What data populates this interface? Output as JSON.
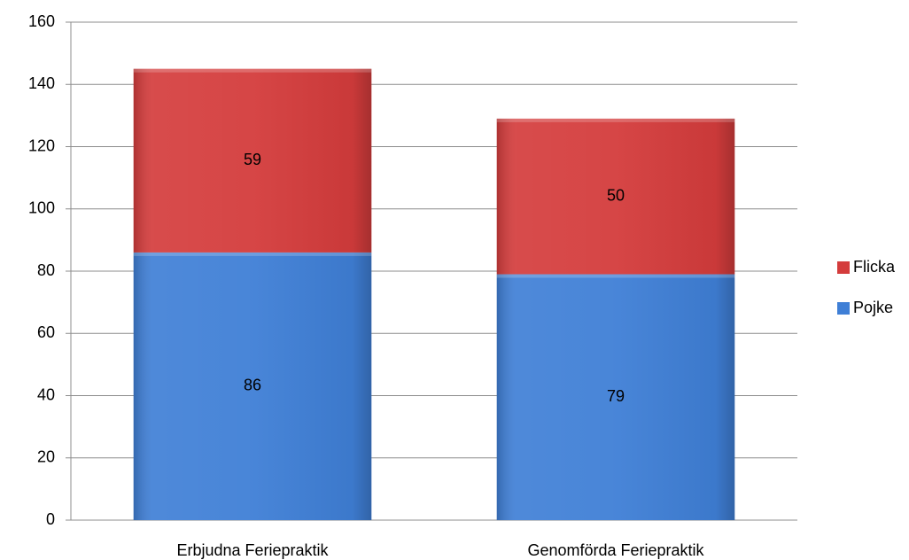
{
  "chart_data": {
    "type": "stacked_bar",
    "categories": [
      "Erbjudna Feriepraktik",
      "Genomförda Feriepraktik"
    ],
    "series": [
      {
        "name": "Pojke",
        "color": "#3f7fd6",
        "values": [
          86,
          79
        ]
      },
      {
        "name": "Flicka",
        "color": "#d43c3c",
        "values": [
          59,
          50
        ]
      }
    ],
    "ylim": [
      0,
      160
    ],
    "yticks": [
      0,
      20,
      40,
      60,
      80,
      100,
      120,
      140,
      160
    ],
    "grid": true,
    "legend": "right"
  }
}
